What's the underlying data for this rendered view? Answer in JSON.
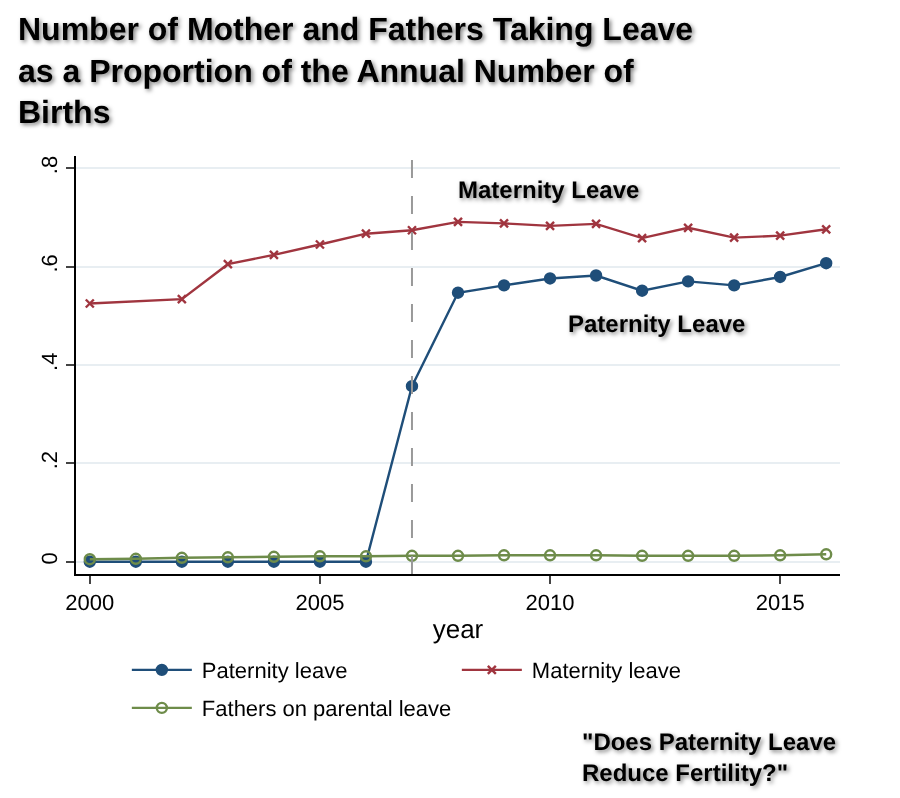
{
  "chart_data": {
    "type": "line",
    "title": "Number of Mother and Fathers Taking Leave as a Proportion of the Annual Number of Births",
    "xlabel": "year",
    "x": [
      2000,
      2001,
      2002,
      2003,
      2004,
      2005,
      2006,
      2007,
      2008,
      2009,
      2010,
      2011,
      2012,
      2013,
      2014,
      2015,
      2016
    ],
    "series": [
      {
        "name": "Paternity leave",
        "color": "#1f4e79",
        "marker": "circle",
        "values": [
          0,
          0,
          0,
          0,
          0,
          0,
          0,
          0.357,
          0.547,
          0.562,
          0.576,
          0.582,
          0.551,
          0.57,
          0.562,
          0.579,
          0.607
        ]
      },
      {
        "name": "Maternity leave",
        "color": "#a0353f",
        "marker": "cross",
        "values": [
          0.525,
          null,
          0.534,
          0.605,
          0.624,
          0.645,
          0.667,
          0.674,
          0.691,
          0.688,
          0.683,
          0.687,
          0.658,
          0.679,
          0.659,
          0.663,
          0.676
        ]
      },
      {
        "name": "Fathers on parental leave",
        "color": "#6e8c4a",
        "marker": "circle-open",
        "values": [
          0.005,
          0.006,
          0.008,
          0.009,
          0.01,
          0.011,
          0.011,
          0.012,
          0.012,
          0.013,
          0.013,
          0.013,
          0.012,
          0.012,
          0.012,
          0.013,
          0.015
        ]
      }
    ],
    "xlim": [
      1999.7,
      2016.3
    ],
    "xticks": [
      2000,
      2005,
      2010,
      2015
    ],
    "ylim": [
      -0.025,
      0.825
    ],
    "yticks": [
      0,
      {
        "value": 0.2,
        "label": ".2"
      },
      {
        "value": 0.4,
        "label": ".4"
      },
      {
        "value": 0.6,
        "label": ".6"
      },
      {
        "value": 0.8,
        "label": ".8"
      }
    ],
    "grid": "y",
    "legend": "bottom",
    "line_style": "solid",
    "ref_lines": [
      {
        "axis": "x",
        "value": 2007,
        "color": "#999999",
        "line_style": "dashed"
      }
    ],
    "annotations": [
      "Maternity Leave",
      "Paternity Leave",
      "\"Does Paternity Leave Reduce Fertility?\""
    ]
  }
}
